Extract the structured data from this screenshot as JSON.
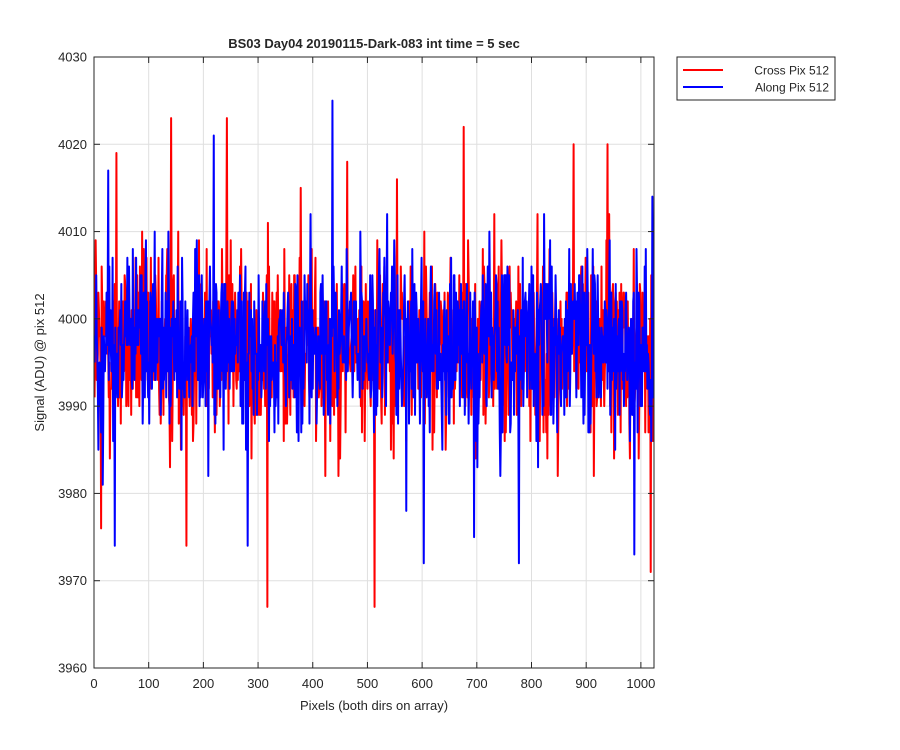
{
  "chart_data": {
    "type": "line",
    "title": "BS03 Day04 20190115-Dark-083 int time = 5 sec",
    "xlabel": "Pixels (both dirs on array)",
    "ylabel": "Signal (ADU) @ pix 512",
    "xlim": [
      0,
      1024
    ],
    "ylim": [
      3960,
      4030
    ],
    "xticks": [
      0,
      100,
      200,
      300,
      400,
      500,
      600,
      700,
      800,
      900,
      1000
    ],
    "yticks": [
      3960,
      3970,
      3980,
      3990,
      4000,
      4010,
      4020,
      4030
    ],
    "grid": true,
    "legend_position": "outside-top-right",
    "series": [
      {
        "name": "Cross Pix 512",
        "color": "#ff0000",
        "mean": 3997,
        "std": 5.5,
        "n": 1024,
        "extremes": [
          [
            2,
            4009
          ],
          [
            12,
            3976
          ],
          [
            40,
            4019
          ],
          [
            140,
            4023
          ],
          [
            168,
            3974
          ],
          [
            242,
            4023
          ],
          [
            316,
            3967
          ],
          [
            377,
            4015
          ],
          [
            462,
            4018
          ],
          [
            512,
            3967
          ],
          [
            553,
            4016
          ],
          [
            675,
            4022
          ],
          [
            876,
            4020
          ],
          [
            938,
            4020
          ],
          [
            1017,
            3971
          ]
        ]
      },
      {
        "name": "Along Pix 512",
        "color": "#0000ff",
        "mean": 3997,
        "std": 5.2,
        "n": 1024,
        "extremes": [
          [
            15,
            3981
          ],
          [
            25,
            4017
          ],
          [
            37,
            3974
          ],
          [
            218,
            4021
          ],
          [
            280,
            3974
          ],
          [
            435,
            4025
          ],
          [
            570,
            3978
          ],
          [
            602,
            3972
          ],
          [
            694,
            3975
          ],
          [
            776,
            3972
          ],
          [
            987,
            3973
          ],
          [
            1020,
            4014
          ]
        ]
      }
    ]
  }
}
